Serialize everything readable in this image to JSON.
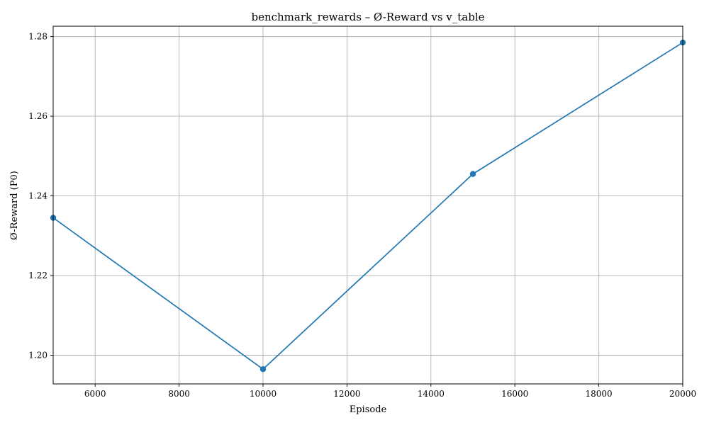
{
  "chart_data": {
    "type": "line",
    "title": "benchmark_rewards – Ø-Reward vs v_table",
    "xlabel": "Episode",
    "ylabel": "Ø-Reward (P0)",
    "xlim": [
      5000,
      20000
    ],
    "ylim": [
      1.1928,
      1.2826
    ],
    "x_ticks": [
      6000,
      8000,
      10000,
      12000,
      14000,
      16000,
      18000,
      20000
    ],
    "y_ticks": [
      1.2,
      1.22,
      1.24,
      1.26,
      1.28
    ],
    "y_tick_labels": [
      "1.20",
      "1.22",
      "1.24",
      "1.26",
      "1.28"
    ],
    "grid": true,
    "series": [
      {
        "x": [
          5000,
          10000,
          15000,
          20000
        ],
        "values": [
          1.2345,
          1.1965,
          1.2455,
          1.2785
        ],
        "color": "#1f77b4",
        "marker": "circle"
      }
    ]
  }
}
